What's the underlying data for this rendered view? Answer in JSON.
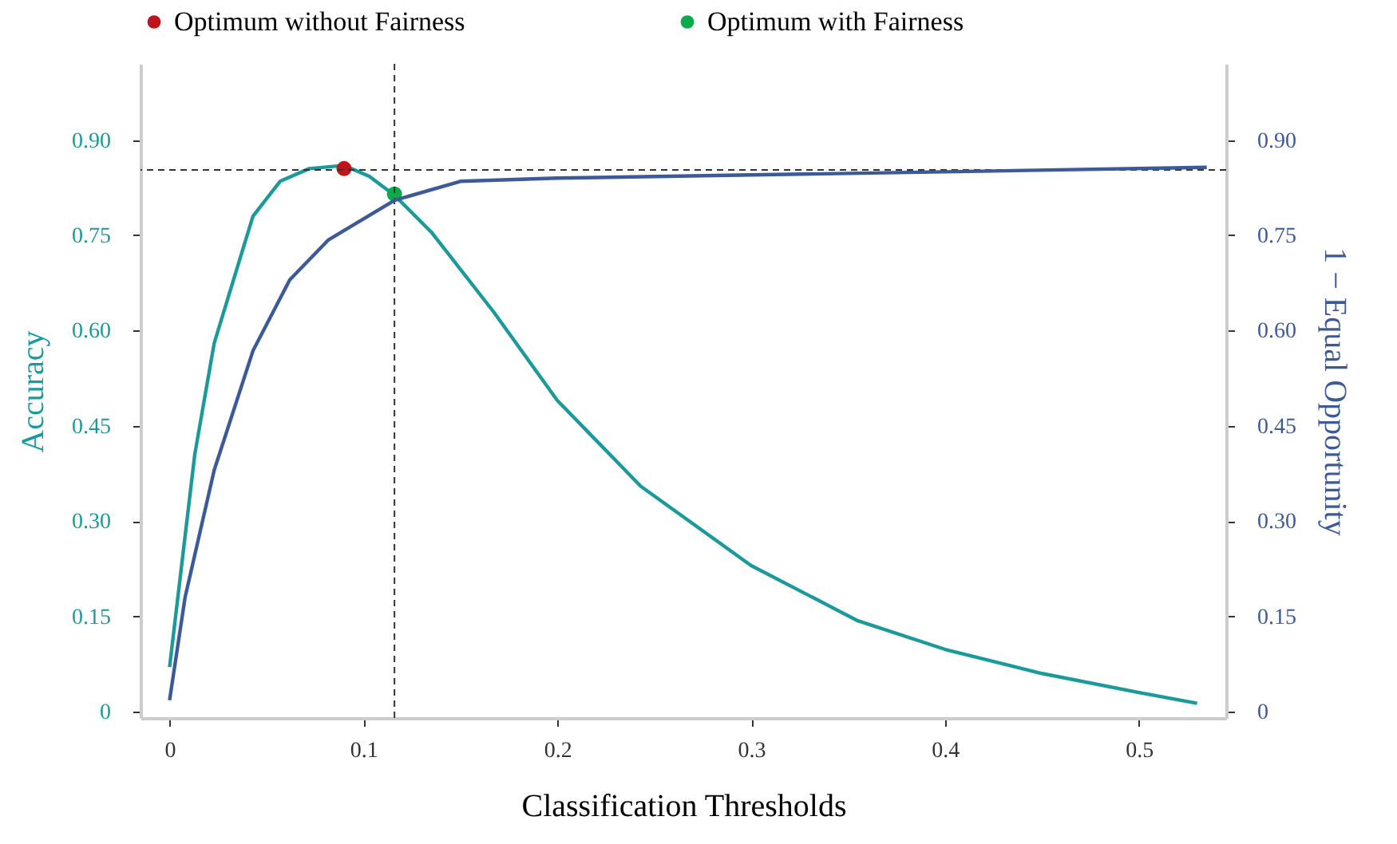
{
  "chart_data": {
    "type": "line",
    "xlabel": "Classification Thresholds",
    "ylabel": "Accuracy",
    "y2label": "1 − Equal Opportunity",
    "xlim": [
      -0.015,
      0.545
    ],
    "xticks": [
      0,
      0.1,
      0.2,
      0.3,
      0.4,
      0.5
    ],
    "ylim": [
      -0.01,
      1.02
    ],
    "yticks": [
      0,
      0.15,
      {
        "value": 0.3,
        "label": "0.30"
      },
      0.45,
      {
        "value": 0.6,
        "label": "0.60"
      },
      0.75,
      {
        "value": 0.9,
        "label": "0.90"
      }
    ],
    "y2lim": [
      -0.01,
      1.02
    ],
    "y2ticks": [
      0,
      0.15,
      {
        "value": 0.3,
        "label": "0.30"
      },
      0.45,
      {
        "value": 0.6,
        "label": "0.60"
      },
      0.75,
      {
        "value": 0.9,
        "label": "0.90"
      }
    ],
    "grid": false,
    "legend": "top",
    "line_style": "solid",
    "series": [
      {
        "axis": "y",
        "color": "#1a9a9a",
        "x": [
          0,
          0.013,
          0.023,
          0.033,
          0.043,
          0.057,
          0.072,
          0.09,
          0.103,
          0.116,
          0.135,
          0.167,
          0.2,
          0.243,
          0.3,
          0.355,
          0.4,
          0.45,
          0.5,
          0.53
        ],
        "values": [
          0.07,
          0.405,
          0.58,
          0.68,
          0.78,
          0.835,
          0.855,
          0.86,
          0.843,
          0.813,
          0.755,
          0.63,
          0.49,
          0.355,
          0.23,
          0.143,
          0.098,
          0.06,
          0.03,
          0.013
        ]
      },
      {
        "axis": "y2",
        "color": "#3d5a98",
        "x": [
          0,
          0.008,
          0.023,
          0.043,
          0.062,
          0.082,
          0.116,
          0.15,
          0.2,
          0.3,
          0.4,
          0.535
        ],
        "values": [
          0.018,
          0.18,
          0.38,
          0.568,
          0.68,
          0.743,
          0.805,
          0.835,
          0.84,
          0.845,
          0.85,
          0.857
        ]
      },
      {
        "type": "scatter",
        "axis": "y",
        "name": "Optimum without Fairness",
        "color": "#c0141c",
        "marker": "circle",
        "x": [
          0.09
        ],
        "values": [
          0.855
        ]
      },
      {
        "type": "scatter",
        "axis": "y",
        "name": "Optimum with Fairness",
        "color": "#0aab4a",
        "marker": "circle",
        "x": [
          0.116
        ],
        "values": [
          0.815
        ]
      }
    ],
    "ref_lines": [
      {
        "axis": "x",
        "value": 0.116,
        "color": "#333333",
        "line_style": "dashed"
      },
      {
        "axis": "y",
        "value": 0.853,
        "color": "#333333",
        "line_style": "dashed"
      }
    ]
  }
}
